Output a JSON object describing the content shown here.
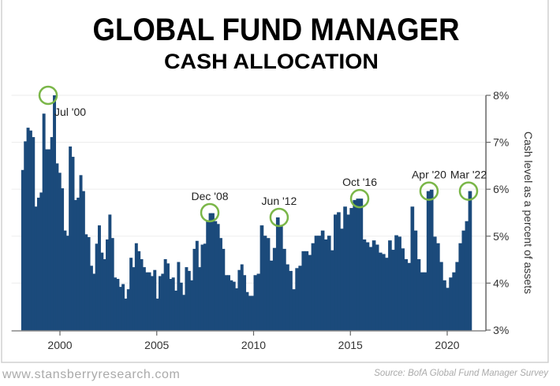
{
  "chart_data": {
    "type": "bar",
    "title": "GLOBAL FUND MANAGER",
    "subtitle": "CASH ALLOCATION",
    "xlabel": "",
    "ylabel": "Cash level as a percent of assets",
    "xlim": [
      1997.5,
      2022.0
    ],
    "ylim": [
      3,
      8
    ],
    "x_ticks": [
      "2000",
      "2005",
      "2010",
      "2015",
      "2020"
    ],
    "y_ticks": [
      "3%",
      "4%",
      "5%",
      "6%",
      "7%",
      "8%"
    ],
    "grid": true,
    "bar_color": "#1b4a7b",
    "highlight_color": "#7ab648",
    "segments": [
      {
        "from": 1998.0,
        "to": 2010.0,
        "values": [
          6.41,
          7.02,
          7.31,
          7.25,
          7.11,
          5.63,
          5.82,
          5.93,
          7.61,
          6.85,
          6.85,
          7.11,
          8.0,
          6.55,
          6.35,
          6.02,
          5.12,
          5.01,
          6.91,
          6.69,
          5.77,
          5.82,
          6.3,
          5.96,
          5.04,
          4.98,
          4.37,
          4.2,
          4.84,
          5.23,
          4.65,
          4.51,
          4.93,
          5.46,
          4.96,
          4.12,
          4.09,
          3.92,
          3.98,
          3.67,
          3.87,
          4.54,
          4.34,
          4.85,
          4.68,
          4.51,
          4.34,
          4.23,
          4.23,
          4.15,
          4.28,
          3.67,
          4.15,
          4.2,
          4.51,
          4.42,
          4.09,
          4.12,
          3.84,
          4.45,
          4.01,
          3.75,
          4.34,
          4.26,
          4.06,
          4.73,
          4.9,
          4.34,
          4.82,
          4.84,
          5.32,
          5.49,
          5.49,
          5.32,
          5.26,
          4.96,
          4.73,
          4.17,
          4.17,
          4.06,
          4.03,
          3.89,
          4.28,
          4.4,
          4.17,
          3.81,
          3.73,
          3.73
        ]
      },
      {
        "from": 2010.0,
        "to": 2021.25,
        "values": [
          4.17,
          4.2,
          5.23,
          5.01,
          4.96,
          4.48,
          4.75,
          5.4,
          5.21,
          4.73,
          4.4,
          4.26,
          3.87,
          4.32,
          4.37,
          4.68,
          4.68,
          4.6,
          4.85,
          5.01,
          5.01,
          5.12,
          4.93,
          5.01,
          4.7,
          5.46,
          5.51,
          5.16,
          5.63,
          5.46,
          5.6,
          5.77,
          5.8,
          5.8,
          4.93,
          4.87,
          4.77,
          4.91,
          4.82,
          4.65,
          4.62,
          4.54,
          4.91,
          4.71,
          5.02,
          4.99,
          4.74,
          4.51,
          4.43,
          5.63,
          5.12,
          4.51,
          4.23,
          4.23,
          5.96,
          5.99,
          4.99,
          4.85,
          4.45,
          4.06,
          3.9,
          4.12,
          4.23,
          4.45,
          4.85,
          5.12,
          5.32,
          5.96
        ]
      }
    ],
    "annotations": [
      {
        "label": "Jul '00",
        "x": 1999.39,
        "y": 8.0,
        "placement": "below-right"
      },
      {
        "label": "Dec '08",
        "x": 2007.74,
        "y": 5.5,
        "placement": "above"
      },
      {
        "label": "Jun '12",
        "x": 2011.32,
        "y": 5.4,
        "placement": "above"
      },
      {
        "label": "Oct '16",
        "x": 2015.48,
        "y": 5.8,
        "placement": "above"
      },
      {
        "label": "Apr '20",
        "x": 2019.06,
        "y": 5.96,
        "placement": "above"
      },
      {
        "label": "Mar '22",
        "x": 2021.1,
        "y": 5.96,
        "placement": "above"
      }
    ]
  },
  "footer": {
    "website": "www.stansberryresearch.com",
    "source": "Source: BofA Global Fund Manager Survey"
  }
}
